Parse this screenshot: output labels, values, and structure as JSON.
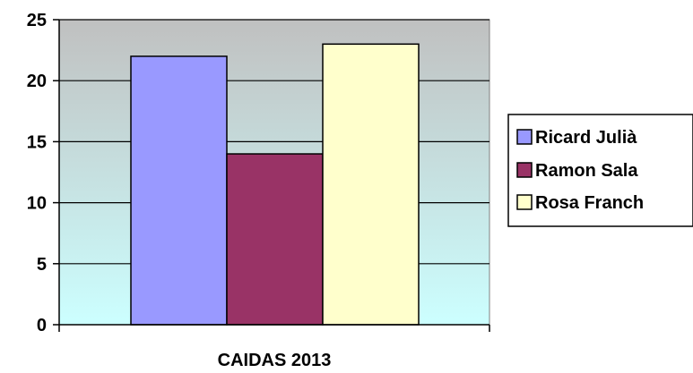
{
  "chart_data": {
    "type": "bar",
    "categories": [
      "CAIDAS 2013"
    ],
    "series": [
      {
        "name": "Ricard Julià",
        "values": [
          22
        ],
        "color": "#9999ff"
      },
      {
        "name": "Ramon Sala",
        "values": [
          14
        ],
        "color": "#993366"
      },
      {
        "name": "Rosa Franch",
        "values": [
          23
        ],
        "color": "#ffffcc"
      }
    ],
    "yticks": [
      "0",
      "5",
      "10",
      "15",
      "20",
      "25"
    ],
    "xlabel": "CAIDAS 2013",
    "ylim": [
      0,
      25
    ],
    "grid": true,
    "legend_position": "right",
    "plot_background_gradient": [
      "#c0c0c0",
      "#ccffff"
    ]
  }
}
